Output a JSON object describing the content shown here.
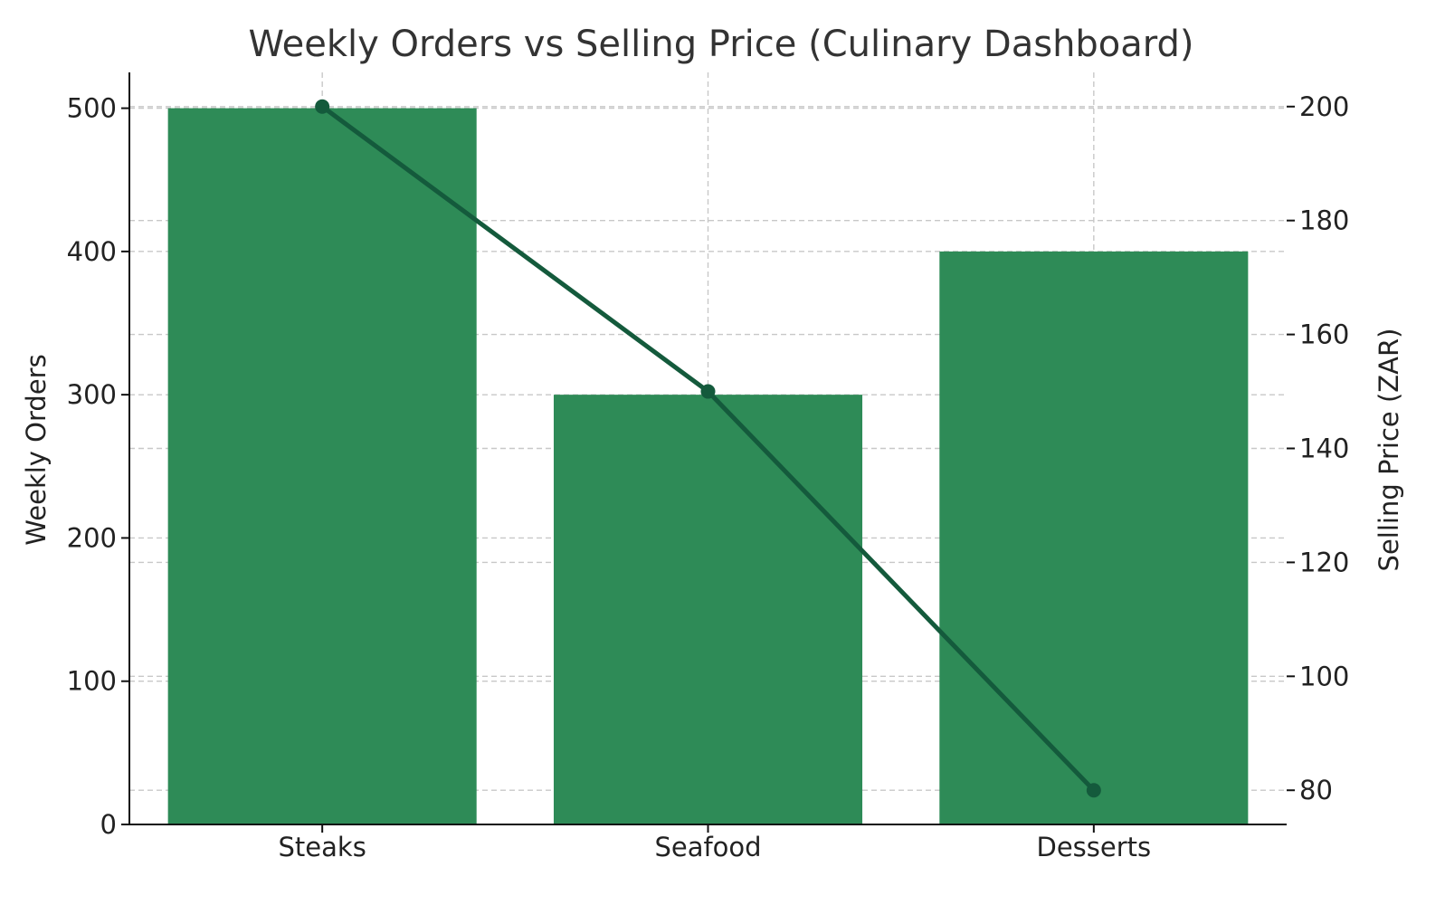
{
  "chart_data": {
    "type": "bar",
    "title": "Weekly Orders vs Selling Price (Culinary Dashboard)",
    "categories": [
      "Steaks",
      "Seafood",
      "Desserts"
    ],
    "series": [
      {
        "name": "",
        "type": "bar",
        "axis": "left",
        "values": [
          500,
          300,
          400
        ]
      },
      {
        "name": "",
        "type": "line",
        "axis": "right",
        "values": [
          200,
          150,
          80
        ]
      }
    ],
    "y_left": {
      "label": "Weekly Orders",
      "ticks": [
        "0",
        "100",
        "200",
        "300",
        "400",
        "500"
      ],
      "tick_values": [
        0,
        100,
        200,
        300,
        400,
        500
      ],
      "range": [
        0,
        525
      ]
    },
    "y_right": {
      "label": "Selling Price (ZAR)",
      "ticks": [
        "80",
        "100",
        "120",
        "140",
        "160",
        "180",
        "200"
      ],
      "tick_values": [
        80,
        100,
        120,
        140,
        160,
        180,
        200
      ],
      "range": [
        74,
        206
      ]
    },
    "grid": true,
    "legend": "none",
    "colors": {
      "bar": "#2e8b57",
      "line": "#145a3c"
    }
  }
}
